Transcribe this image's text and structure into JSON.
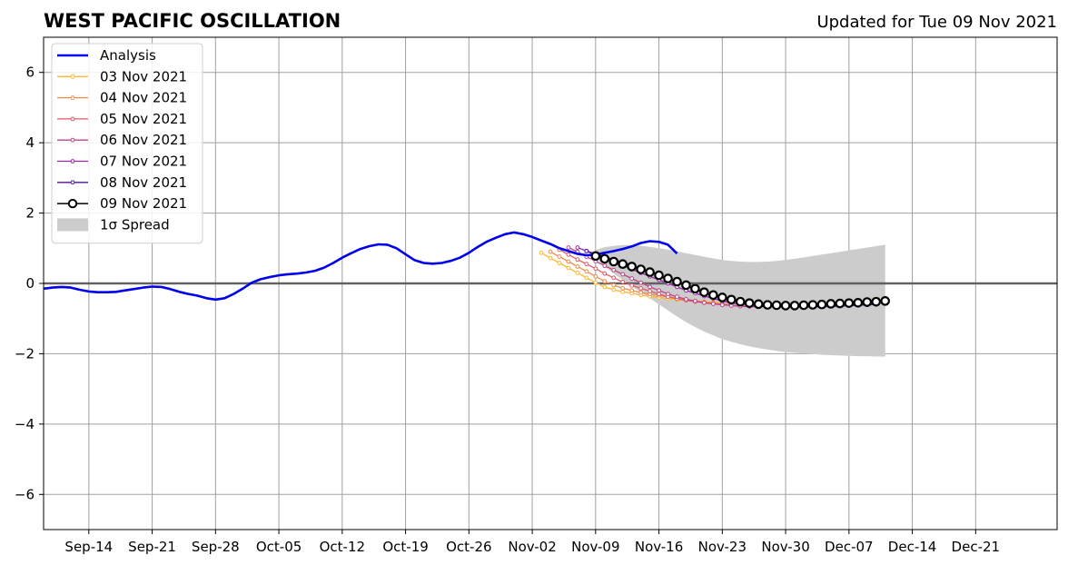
{
  "chart_data": {
    "type": "line",
    "title": "WEST PACIFIC OSCILLATION",
    "subtitle": "Updated for Tue 09 Nov 2021",
    "xlabel": "",
    "ylabel": "",
    "x_axis": {
      "type": "date",
      "range": [
        "2021-09-09",
        "2021-12-30"
      ],
      "tick_labels": [
        "Sep-14",
        "Sep-21",
        "Sep-28",
        "Oct-05",
        "Oct-12",
        "Oct-19",
        "Oct-26",
        "Nov-02",
        "Nov-09",
        "Nov-16",
        "Nov-23",
        "Nov-30",
        "Dec-07",
        "Dec-14",
        "Dec-21"
      ],
      "tick_dates": [
        "2021-09-14",
        "2021-09-21",
        "2021-09-28",
        "2021-10-05",
        "2021-10-12",
        "2021-10-19",
        "2021-10-26",
        "2021-11-02",
        "2021-11-09",
        "2021-11-16",
        "2021-11-23",
        "2021-11-30",
        "2021-12-07",
        "2021-12-14",
        "2021-12-21"
      ]
    },
    "y_axis": {
      "range": [
        -7,
        7
      ],
      "ticks": [
        -6,
        -4,
        -2,
        0,
        2,
        4,
        6
      ],
      "tick_labels": [
        "−6",
        "−4",
        "−2",
        "0",
        "2",
        "4",
        "6"
      ]
    },
    "grid": true,
    "zero_line": true,
    "legend_position": "top-left",
    "series": [
      {
        "name": "Analysis",
        "color": "#0000ee",
        "style": "thick-line",
        "x_start": "2021-09-09",
        "step_days": 1,
        "y": [
          -0.15,
          -0.12,
          -0.1,
          -0.12,
          -0.18,
          -0.23,
          -0.25,
          -0.25,
          -0.24,
          -0.2,
          -0.16,
          -0.12,
          -0.09,
          -0.1,
          -0.16,
          -0.24,
          -0.3,
          -0.35,
          -0.42,
          -0.46,
          -0.42,
          -0.3,
          -0.15,
          0.02,
          0.12,
          0.18,
          0.23,
          0.26,
          0.28,
          0.31,
          0.36,
          0.45,
          0.58,
          0.73,
          0.86,
          0.98,
          1.06,
          1.11,
          1.1,
          1.0,
          0.83,
          0.66,
          0.58,
          0.56,
          0.58,
          0.64,
          0.73,
          0.87,
          1.04,
          1.19,
          1.3,
          1.4,
          1.45,
          1.4,
          1.32,
          1.22,
          1.12,
          1.0,
          0.92,
          0.84,
          0.8,
          0.82,
          0.87,
          0.92,
          0.98,
          1.05,
          1.15,
          1.2,
          1.18,
          1.1,
          0.85
        ]
      },
      {
        "name": "03 Nov 2021",
        "color": "#ffb82e",
        "style": "thin-marker",
        "x_start": "2021-11-03",
        "step_days": 1,
        "y": [
          0.87,
          0.72,
          0.58,
          0.44,
          0.3,
          0.16,
          0.02,
          -0.1,
          -0.18,
          -0.24,
          -0.28,
          -0.33,
          -0.37,
          -0.4,
          -0.43,
          -0.46,
          -0.48,
          -0.5,
          -0.52,
          -0.54,
          -0.56
        ]
      },
      {
        "name": "04 Nov 2021",
        "color": "#f08a4b",
        "style": "thin-marker",
        "x_start": "2021-11-04",
        "step_days": 1,
        "y": [
          0.9,
          0.76,
          0.62,
          0.48,
          0.34,
          0.2,
          0.06,
          -0.05,
          -0.14,
          -0.2,
          -0.26,
          -0.3,
          -0.34,
          -0.38,
          -0.42,
          -0.46,
          -0.5,
          -0.53,
          -0.56,
          -0.58,
          -0.6
        ]
      },
      {
        "name": "05 Nov 2021",
        "color": "#e05a66",
        "style": "thin-marker",
        "x_start": "2021-11-05",
        "step_days": 1,
        "y": [
          0.96,
          0.82,
          0.68,
          0.55,
          0.42,
          0.28,
          0.16,
          0.04,
          -0.06,
          -0.14,
          -0.22,
          -0.3,
          -0.38,
          -0.44,
          -0.48,
          -0.52,
          -0.55,
          -0.58,
          -0.6,
          -0.62,
          -0.64
        ]
      },
      {
        "name": "06 Nov 2021",
        "color": "#c0438a",
        "style": "thin-marker",
        "x_start": "2021-11-06",
        "step_days": 1,
        "y": [
          1.02,
          0.9,
          0.76,
          0.63,
          0.5,
          0.38,
          0.26,
          0.14,
          0.02,
          -0.1,
          -0.2,
          -0.3,
          -0.38,
          -0.45,
          -0.5,
          -0.55,
          -0.58,
          -0.61,
          -0.63,
          -0.65,
          -0.66,
          -0.66,
          -0.66,
          -0.66,
          -0.65,
          -0.64,
          -0.63,
          -0.62,
          -0.61,
          -0.6,
          -0.6,
          -0.6,
          -0.6,
          -0.6,
          -0.6
        ]
      },
      {
        "name": "07 Nov 2021",
        "color": "#9a25a8",
        "style": "thin-marker",
        "x_start": "2021-11-07",
        "step_days": 1,
        "y": [
          1.02,
          0.92,
          0.8,
          0.7,
          0.6,
          0.5,
          0.4,
          0.3,
          0.2,
          0.1,
          0.0,
          -0.1,
          -0.2,
          -0.28,
          -0.36,
          -0.43,
          -0.5,
          -0.55,
          -0.6,
          -0.63,
          -0.65,
          -0.66,
          -0.67,
          -0.67,
          -0.67,
          -0.67,
          -0.66,
          -0.66,
          -0.65,
          -0.64,
          -0.63,
          -0.62,
          -0.61,
          -0.6
        ]
      },
      {
        "name": "08 Nov 2021",
        "color": "#4b0f9a",
        "style": "thin-marker",
        "x_start": "2021-11-08",
        "step_days": 1,
        "y": [
          0.92,
          0.84,
          0.76,
          0.68,
          0.6,
          0.52,
          0.43,
          0.34,
          0.24,
          0.14,
          0.04,
          -0.06,
          -0.16,
          -0.25,
          -0.33,
          -0.4,
          -0.47,
          -0.53,
          -0.57,
          -0.6,
          -0.62,
          -0.64,
          -0.65,
          -0.66,
          -0.66,
          -0.66,
          -0.66,
          -0.65,
          -0.64,
          -0.63,
          -0.62,
          -0.61,
          -0.6
        ]
      },
      {
        "name": "09 Nov 2021",
        "color": "#000000",
        "style": "circle-marker",
        "x_start": "2021-11-09",
        "step_days": 1,
        "y": [
          0.78,
          0.7,
          0.62,
          0.55,
          0.48,
          0.4,
          0.32,
          0.23,
          0.14,
          0.05,
          -0.05,
          -0.15,
          -0.25,
          -0.33,
          -0.4,
          -0.46,
          -0.52,
          -0.56,
          -0.59,
          -0.61,
          -0.62,
          -0.63,
          -0.63,
          -0.62,
          -0.61,
          -0.6,
          -0.58,
          -0.57,
          -0.56,
          -0.55,
          -0.53,
          -0.52,
          -0.5
        ]
      }
    ],
    "spread": {
      "name": "1σ Spread",
      "color": "#cccccc",
      "x_start": "2021-11-09",
      "step_days": 1,
      "upper": [
        0.95,
        1.03,
        1.07,
        1.09,
        1.09,
        1.07,
        1.04,
        1.0,
        0.96,
        0.91,
        0.86,
        0.81,
        0.76,
        0.71,
        0.67,
        0.64,
        0.62,
        0.61,
        0.61,
        0.62,
        0.64,
        0.67,
        0.7,
        0.74,
        0.78,
        0.82,
        0.86,
        0.9,
        0.94,
        0.98,
        1.02,
        1.06,
        1.1
      ],
      "lower": [
        0.7,
        0.48,
        0.28,
        0.1,
        -0.08,
        -0.25,
        -0.42,
        -0.6,
        -0.77,
        -0.94,
        -1.1,
        -1.24,
        -1.37,
        -1.48,
        -1.58,
        -1.66,
        -1.73,
        -1.79,
        -1.84,
        -1.88,
        -1.92,
        -1.95,
        -1.97,
        -1.99,
        -2.01,
        -2.03,
        -2.04,
        -2.05,
        -2.06,
        -2.07,
        -2.07,
        -2.08,
        -2.08
      ]
    }
  }
}
